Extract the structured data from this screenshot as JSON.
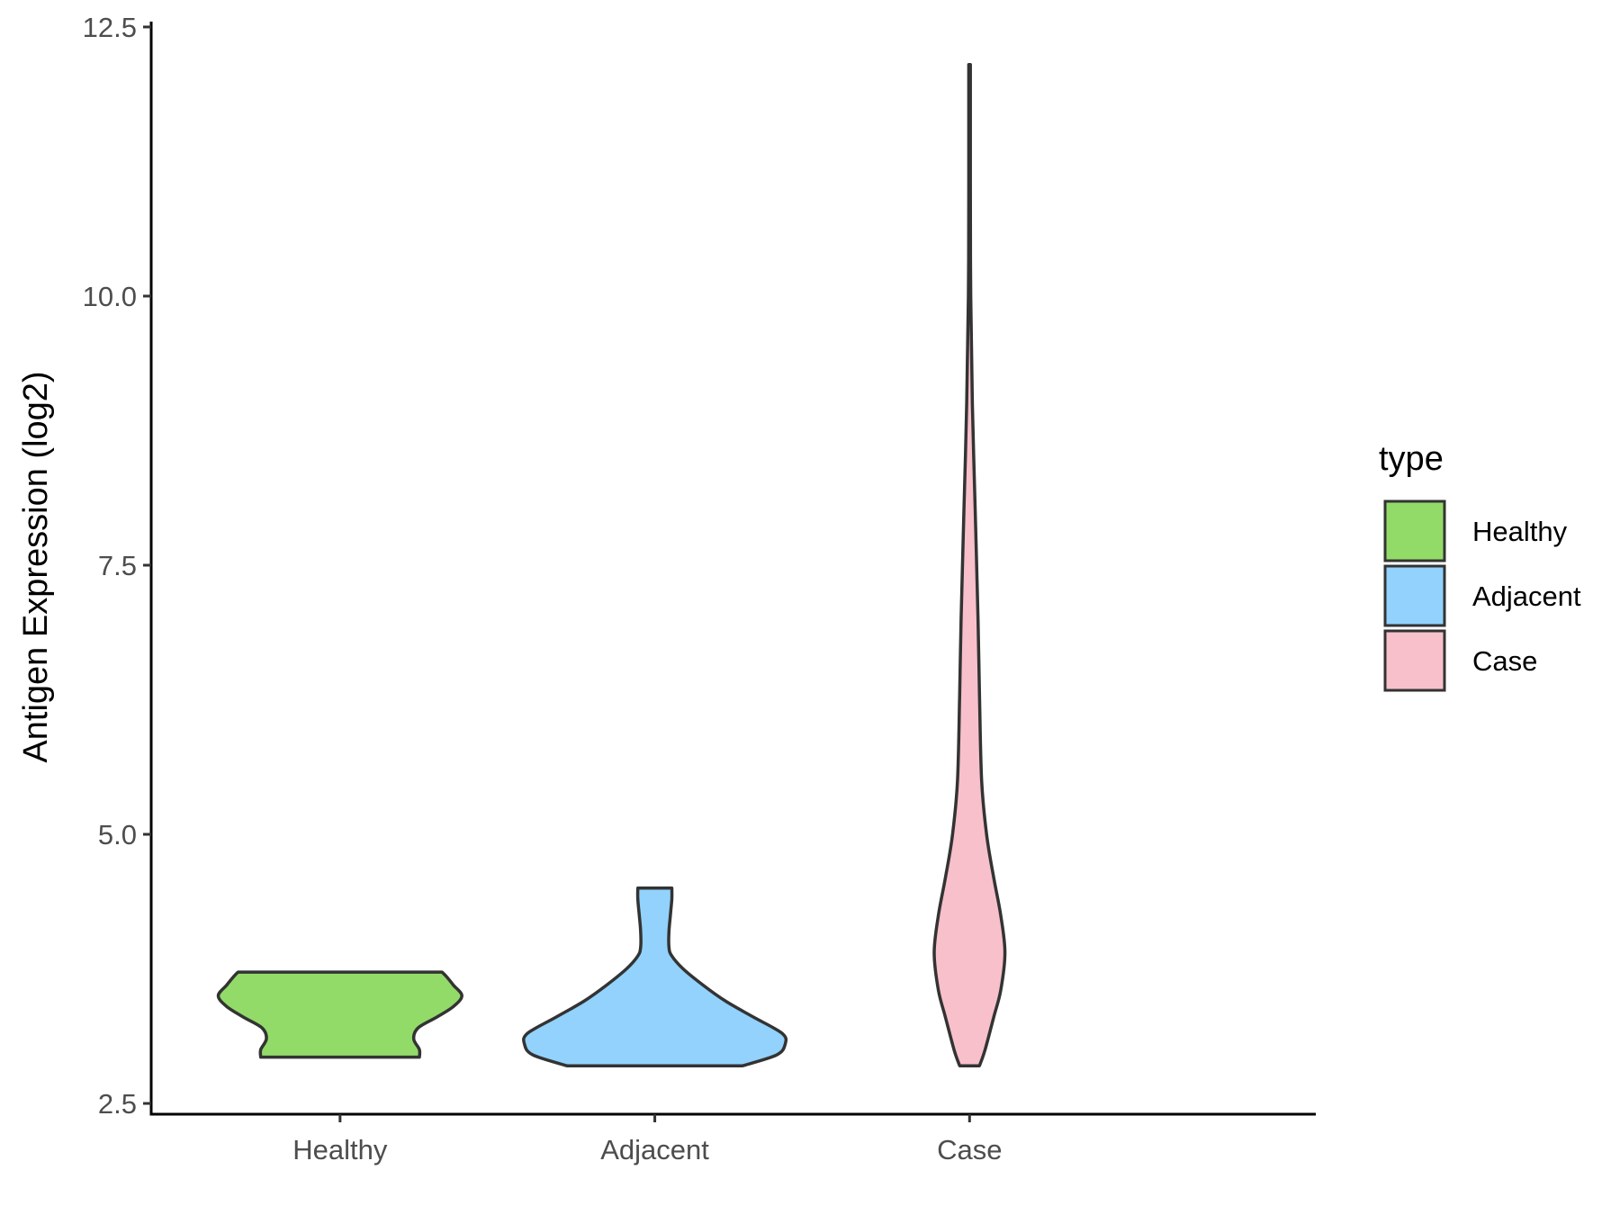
{
  "chart_data": {
    "type": "violin",
    "title": "",
    "xlabel": "",
    "ylabel": "Antigen Expression (log2)",
    "ylim": [
      2.4,
      12.6
    ],
    "yticks": [
      "2.5",
      "5.0",
      "7.5",
      "10.0",
      "12.5"
    ],
    "ytick_values": [
      2.5,
      5.0,
      7.5,
      10.0,
      12.5
    ],
    "categories": [
      "Healthy",
      "Adjacent",
      "Case"
    ],
    "grid": false,
    "legend": {
      "title": "type",
      "placement": "right"
    },
    "series": [
      {
        "name": "Healthy",
        "color": "#92db68",
        "min": 2.93,
        "max": 3.72,
        "density": [
          [
            2.93,
            0.56
          ],
          [
            3.0,
            0.56
          ],
          [
            3.1,
            0.52
          ],
          [
            3.2,
            0.55
          ],
          [
            3.3,
            0.68
          ],
          [
            3.4,
            0.8
          ],
          [
            3.5,
            0.86
          ],
          [
            3.6,
            0.8
          ],
          [
            3.68,
            0.75
          ],
          [
            3.72,
            0.72
          ]
        ]
      },
      {
        "name": "Adjacent",
        "color": "#92d2fd",
        "min": 2.85,
        "max": 4.5,
        "density": [
          [
            2.85,
            0.62
          ],
          [
            2.95,
            0.86
          ],
          [
            3.05,
            0.92
          ],
          [
            3.15,
            0.9
          ],
          [
            3.3,
            0.7
          ],
          [
            3.45,
            0.5
          ],
          [
            3.6,
            0.34
          ],
          [
            3.75,
            0.2
          ],
          [
            3.87,
            0.12
          ],
          [
            3.95,
            0.1
          ],
          [
            4.1,
            0.1
          ],
          [
            4.25,
            0.11
          ],
          [
            4.4,
            0.12
          ],
          [
            4.5,
            0.12
          ]
        ]
      },
      {
        "name": "Case",
        "color": "#f7c0cb",
        "min": 2.85,
        "max": 12.15,
        "density": [
          [
            2.85,
            0.07
          ],
          [
            3.0,
            0.11
          ],
          [
            3.3,
            0.17
          ],
          [
            3.55,
            0.22
          ],
          [
            3.9,
            0.25
          ],
          [
            4.25,
            0.22
          ],
          [
            4.6,
            0.17
          ],
          [
            5.0,
            0.12
          ],
          [
            5.5,
            0.085
          ],
          [
            6.3,
            0.07
          ],
          [
            7.0,
            0.06
          ],
          [
            8.0,
            0.04
          ],
          [
            9.0,
            0.02
          ],
          [
            10.0,
            0.008
          ],
          [
            11.0,
            0.006
          ],
          [
            12.15,
            0.006
          ]
        ]
      }
    ]
  }
}
